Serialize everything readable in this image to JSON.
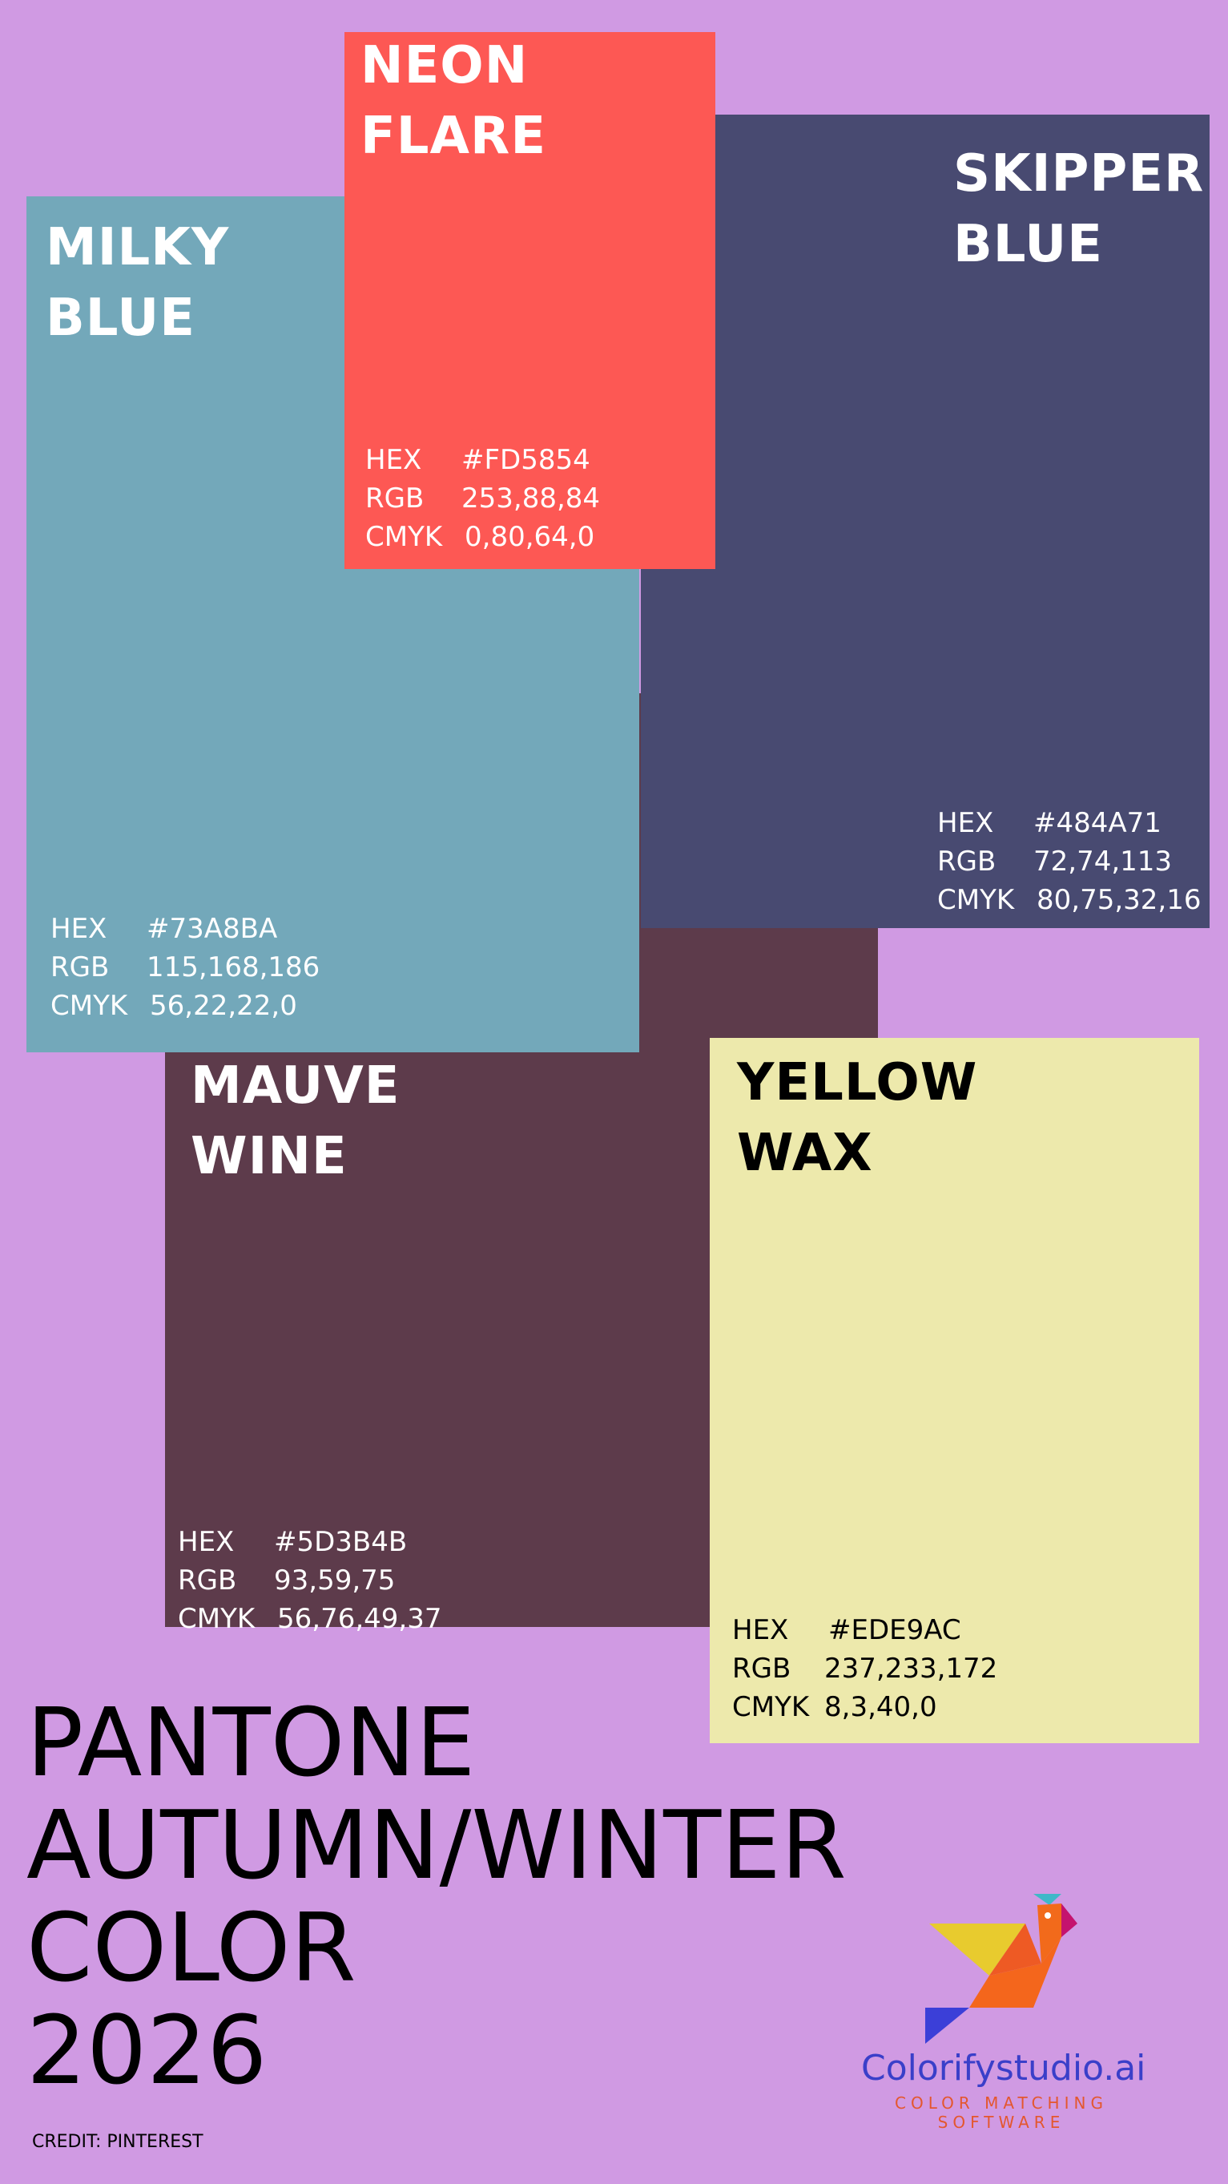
{
  "background_color": "#D09AE3",
  "swatches": {
    "neon_flare": {
      "name": "NEON\nFLARE",
      "color": "#FD5854",
      "text_color": "#FFFFFF",
      "hex_label": "HEX",
      "hex": "#FD5854",
      "rgb_label": "RGB",
      "rgb": "253,88,84",
      "cmyk_label": "CMYK",
      "cmyk": "0,80,64,0"
    },
    "skipper_blue": {
      "name": "SKIPPER\nBLUE",
      "color": "#484A71",
      "text_color": "#FFFFFF",
      "hex_label": "HEX",
      "hex": "#484A71",
      "rgb_label": "RGB",
      "rgb": "72,74,113",
      "cmyk_label": "CMYK",
      "cmyk": "80,75,32,16"
    },
    "milky_blue": {
      "name": "MILKY\nBLUE",
      "color": "#73A8BA",
      "text_color": "#FFFFFF",
      "hex_label": "HEX",
      "hex": "#73A8BA",
      "rgb_label": "RGB",
      "rgb": "115,168,186",
      "cmyk_label": "CMYK",
      "cmyk": "56,22,22,0"
    },
    "mauve_wine": {
      "name": "MAUVE\nWINE",
      "color": "#5D3B4B",
      "text_color": "#FFFFFF",
      "hex_label": "HEX",
      "hex": "#5D3B4B",
      "rgb_label": "RGB",
      "rgb": "93,59,75",
      "cmyk_label": "CMYK",
      "cmyk": "56,76,49,37"
    },
    "yellow_wax": {
      "name": "YELLOW\nWAX",
      "color": "#EDE9AC",
      "text_color": "#000000",
      "hex_label": "HEX",
      "hex": "#EDE9AC",
      "rgb_label": "RGB",
      "rgb": "237,233,172",
      "cmyk_label": "CMYK",
      "cmyk": "8,3,40,0"
    }
  },
  "title": "PANTONE\nAUTUMN/WINTER\nCOLOR\n2026",
  "credit": "CREDIT: PINTEREST",
  "logo": {
    "icon": "tangram-bird-icon",
    "brand": "Colorifystudio.ai",
    "tagline": "COLOR MATCHING SOFTWARE"
  }
}
